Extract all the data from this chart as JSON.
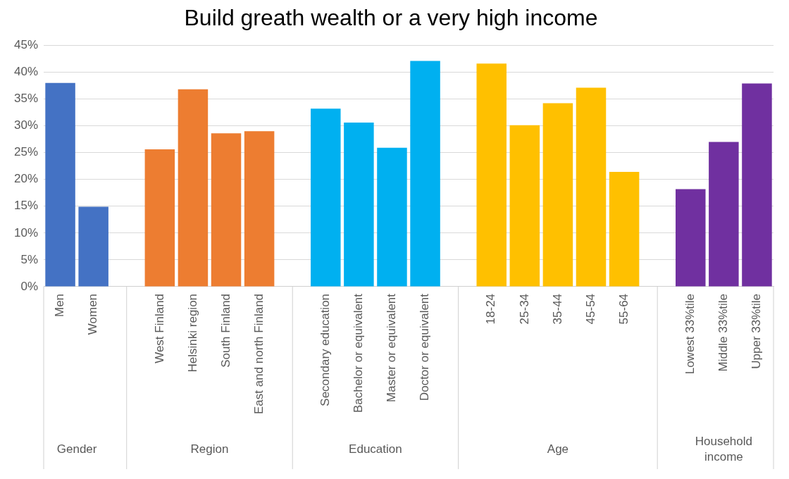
{
  "chart_data": {
    "type": "bar",
    "title": "Build greath wealth or a very high income",
    "categories": [
      "Men",
      "Women",
      null,
      "West Finland",
      "Helsinki region",
      "South Finland",
      "East and north Finland",
      null,
      "Secondary education",
      "Bachelor or equivalent",
      "Master or equivalent",
      "Doctor or equivalent",
      null,
      "18-24",
      "25-34",
      "35-44",
      "45-54",
      "55-64",
      null,
      "Lowest 33%tile",
      "Middle 33%tile",
      "Upper 33%tile"
    ],
    "series": [
      {
        "color": "#4472c4",
        "values": [
          38.0,
          14.9,
          null,
          null,
          null,
          null,
          null,
          null,
          null,
          null,
          null,
          null,
          null,
          null,
          null,
          null,
          null,
          null,
          null,
          null,
          null,
          null
        ]
      },
      {
        "color": "#ed7d31",
        "values": [
          null,
          null,
          null,
          25.6,
          36.8,
          28.6,
          29.0,
          null,
          null,
          null,
          null,
          null,
          null,
          null,
          null,
          null,
          null,
          null,
          null,
          null,
          null,
          null
        ]
      },
      {
        "color": "#00b0f0",
        "values": [
          null,
          null,
          null,
          null,
          null,
          null,
          null,
          null,
          33.2,
          30.6,
          25.9,
          42.1,
          null,
          null,
          null,
          null,
          null,
          null,
          null,
          null,
          null,
          null
        ]
      },
      {
        "color": "#ffc000",
        "values": [
          null,
          null,
          null,
          null,
          null,
          null,
          null,
          null,
          null,
          null,
          null,
          null,
          null,
          41.6,
          30.1,
          34.2,
          37.1,
          21.4,
          null,
          null,
          null,
          null
        ]
      },
      {
        "color": "#7030a0",
        "values": [
          null,
          null,
          null,
          null,
          null,
          null,
          null,
          null,
          null,
          null,
          null,
          null,
          null,
          null,
          null,
          null,
          null,
          null,
          null,
          18.2,
          27.0,
          37.9
        ]
      }
    ],
    "ylim": [
      0,
      45
    ],
    "yticks": [
      {
        "value": 0,
        "label": "0%"
      },
      {
        "value": 5,
        "label": "5%"
      },
      {
        "value": 10,
        "label": "10%"
      },
      {
        "value": 15,
        "label": "15%"
      },
      {
        "value": 20,
        "label": "20%"
      },
      {
        "value": 25,
        "label": "25%"
      },
      {
        "value": 30,
        "label": "30%"
      },
      {
        "value": 35,
        "label": "35%"
      },
      {
        "value": 40,
        "label": "40%"
      },
      {
        "value": 45,
        "label": "45%"
      }
    ],
    "annotations": [
      "Gender",
      "Region",
      "Education",
      "Age",
      "Household income"
    ],
    "grid": "y",
    "legend": false
  }
}
